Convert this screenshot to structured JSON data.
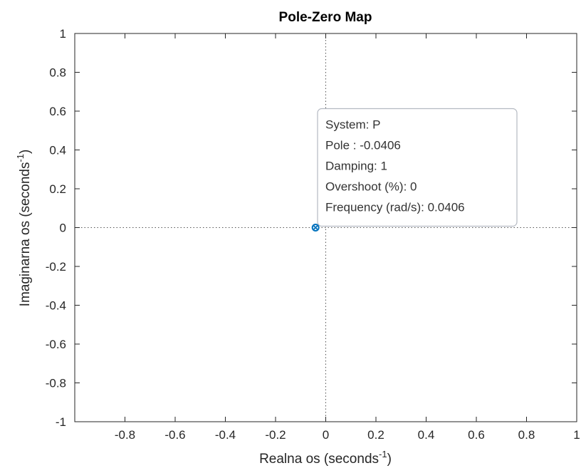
{
  "chart_data": {
    "type": "scatter",
    "title": "Pole-Zero Map",
    "xlabel": {
      "text": "Realna os (seconds",
      "sup": "-1",
      "close": ")"
    },
    "ylabel": {
      "text": "Imaginarna os (seconds",
      "sup": "-1",
      "close": ")"
    },
    "xlim": [
      -1,
      1
    ],
    "ylim": [
      -1,
      1
    ],
    "xticks": [
      -0.8,
      -0.6,
      -0.4,
      -0.2,
      0,
      0.2,
      0.4,
      0.6,
      0.8,
      1
    ],
    "xtick_labels": [
      "-0.8",
      "-0.6",
      "-0.4",
      "-0.2",
      "0",
      "0.2",
      "0.4",
      "0.6",
      "0.8",
      "1"
    ],
    "yticks": [
      1,
      0.8,
      0.6,
      0.4,
      0.2,
      0,
      -0.2,
      -0.4,
      -0.6,
      -0.8,
      -1
    ],
    "ytick_labels": [
      "1",
      "0.8",
      "0.6",
      "0.4",
      "0.2",
      "0",
      "-0.2",
      "-0.4",
      "-0.6",
      "-0.8",
      "-1"
    ],
    "grid": false,
    "reference_lines": {
      "x": 0,
      "y": 0,
      "style": "dotted"
    },
    "series": [
      {
        "poles": [
          {
            "x": -0.0406,
            "y": 0
          }
        ],
        "zeros": [
          {
            "x": -0.0406,
            "y": 0
          }
        ],
        "color": "#0072bd"
      }
    ],
    "datatip": {
      "lines": [
        "System: P",
        "Pole : -0.0406",
        "Damping: 1",
        "Overshoot (%): 0",
        "Frequency (rad/s): 0.0406"
      ]
    }
  }
}
